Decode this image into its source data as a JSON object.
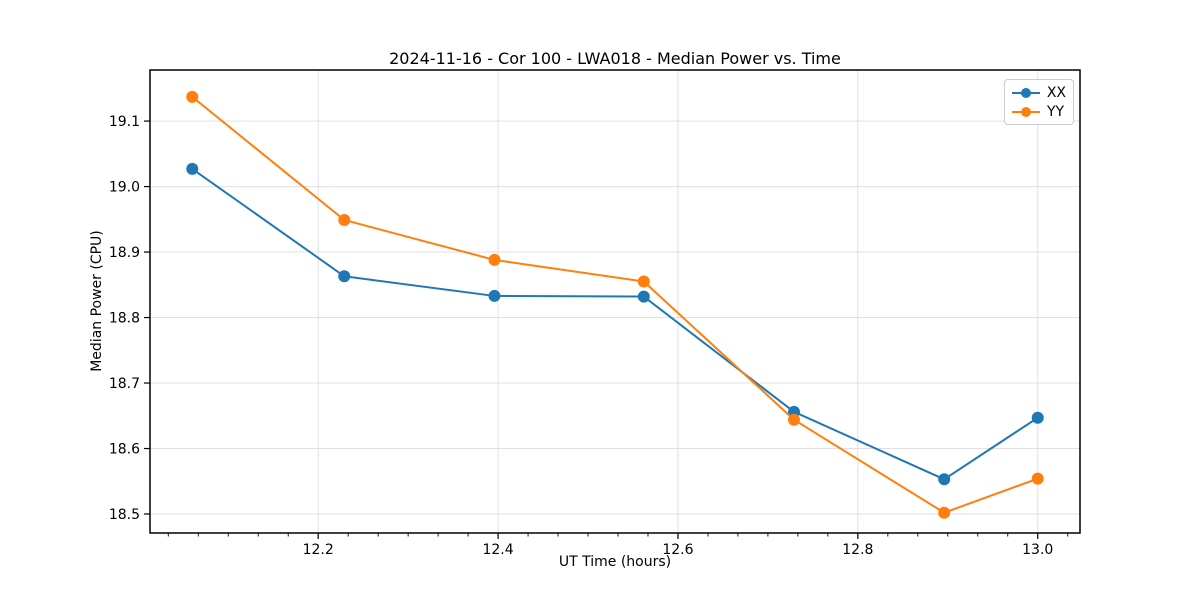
{
  "chart_data": {
    "type": "line",
    "title": "2024-11-16 - Cor 100 - LWA018 - Median Power vs. Time",
    "xlabel": "UT Time (hours)",
    "ylabel": "Median Power (CPU)",
    "x": [
      12.06,
      12.229,
      12.396,
      12.562,
      12.729,
      12.896,
      13.0
    ],
    "series": [
      {
        "name": "XX",
        "color": "#1f77b4",
        "values": [
          19.027,
          18.863,
          18.833,
          18.832,
          18.656,
          18.553,
          18.647
        ]
      },
      {
        "name": "YY",
        "color": "#ff7f0e",
        "values": [
          19.137,
          18.949,
          18.888,
          18.855,
          18.644,
          18.502,
          18.554
        ]
      }
    ],
    "xlim": [
      12.013,
      13.047
    ],
    "ylim": [
      18.471,
      19.178
    ],
    "xticks": [
      12.2,
      12.4,
      12.6,
      12.8,
      13.0
    ],
    "yticks": [
      18.5,
      18.6,
      18.7,
      18.8,
      18.9,
      19.0,
      19.1
    ],
    "minor_xticks": {
      "start": 12.0,
      "step_numerator": 0.2,
      "subdivisions": 6
    },
    "grid": true,
    "grid_color": "#e0e0e0",
    "spine_color": "#000000",
    "legend_position": "upper right",
    "marker": "circle",
    "marker_radius": 6,
    "line_width": 2
  }
}
